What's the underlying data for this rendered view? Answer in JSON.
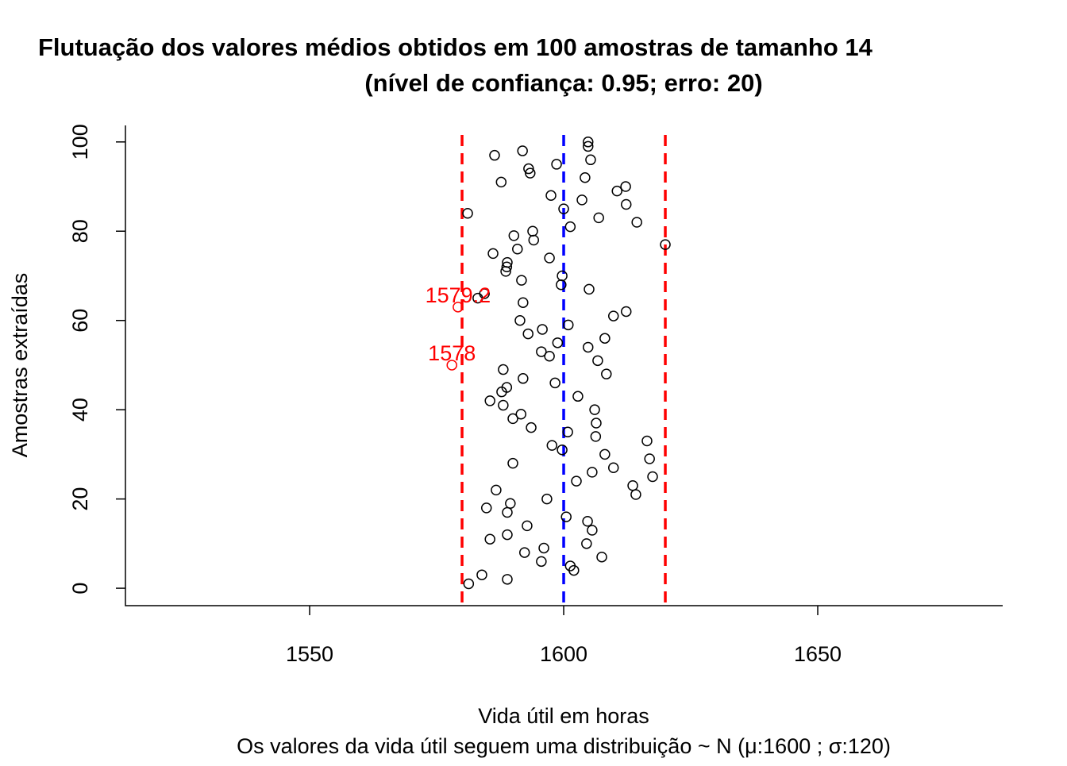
{
  "chart_data": {
    "type": "scatter",
    "title": "Flutuação dos valores médios obtidos em 100 amostras de tamanho 14",
    "subtitle": "(nível de confiança: 0.95; erro: 20)",
    "xlabel": "Vida útil em horas",
    "xlabel2": "Os valores da vida útil seguem uma distribuição ~ N  (μ:1600 ; σ:120)",
    "ylabel": "Amostras extraídas",
    "xlim": [
      1513.75,
      1686.4
    ],
    "ylim": [
      -3.9,
      103.7
    ],
    "xticks": [
      "1550",
      "1600",
      "1650"
    ],
    "yticks": [
      "0",
      "20",
      "40",
      "60",
      "80",
      "100"
    ],
    "vlines": [
      {
        "x": 1580,
        "color": "#ff0000",
        "style": "dashed"
      },
      {
        "x": 1600,
        "color": "#0000ff",
        "style": "dashed"
      },
      {
        "x": 1620,
        "color": "#ff0000",
        "style": "dashed"
      }
    ],
    "points": [
      1581.3,
      1588.9,
      1583.9,
      1602,
      1601.3,
      1595.6,
      1607.5,
      1592.3,
      1596.1,
      1604.5,
      1585.5,
      1588.9,
      1605.6,
      1592.8,
      1604.7,
      1600.5,
      1588.9,
      1584.8,
      1589.5,
      1596.7,
      1614.2,
      1586.7,
      1613.6,
      1602.5,
      1617.5,
      1605.6,
      1609.8,
      1590,
      1616.9,
      1608.1,
      1599.7,
      1597.7,
      1616.4,
      1606.3,
      1600.8,
      1593.6,
      1606.4,
      1590,
      1591.6,
      1606.1,
      1588.1,
      1585.5,
      1602.8,
      1587.8,
      1588.8,
      1598.3,
      1592,
      1608.4,
      1588.1,
      1578,
      1606.7,
      1597.2,
      1595.6,
      1604.8,
      1598.8,
      1608.1,
      1593,
      1595.8,
      1600.9,
      1591.4,
      1609.8,
      1612.3,
      1579.2,
      1592,
      1583.1,
      1584.4,
      1605,
      1599.5,
      1591.7,
      1599.7,
      1588.6,
      1588.8,
      1588.9,
      1597.2,
      1586.1,
      1590.9,
      1620,
      1594.1,
      1590.2,
      1593.9,
      1601.3,
      1614.4,
      1606.9,
      1581.1,
      1600,
      1612.3,
      1603.6,
      1597.5,
      1610.5,
      1612.2,
      1587.7,
      1604.2,
      1593.4,
      1593.1,
      1598.6,
      1605.3,
      1586.4,
      1591.9,
      1604.8,
      1604.8
    ],
    "annotations": [
      {
        "sample": 63,
        "x": 1579.2,
        "text": "1579.2",
        "color": "#ff0000"
      },
      {
        "sample": 50,
        "x": 1578,
        "text": "1578",
        "color": "#ff0000"
      }
    ],
    "point_color": "#000000",
    "outlier_color": "#ff0000"
  }
}
